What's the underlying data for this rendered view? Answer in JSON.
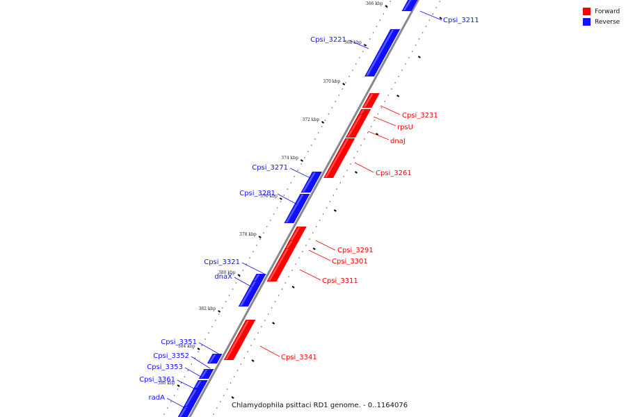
{
  "legend": [
    {
      "label": "Forward",
      "color": "#ff0000"
    },
    {
      "label": "Reverse",
      "color": "#1010ff"
    }
  ],
  "caption": "Chlamydophila psittaci RD1 genome. - 0..1164076",
  "kbp_ticks": [
    "366 kbp",
    "368 kbp",
    "370 kbp",
    "372 kbp",
    "374 kbp",
    "376 kbp",
    "378 kbp",
    "380 kbp",
    "382 kbp",
    "384 kbp",
    "386 kbp"
  ],
  "genes": [
    {
      "name": "Cpsi_3211",
      "strand": "reverse"
    },
    {
      "name": "Cpsi_3221",
      "strand": "reverse"
    },
    {
      "name": "Cpsi_3231",
      "strand": "forward"
    },
    {
      "name": "rpsU",
      "strand": "forward"
    },
    {
      "name": "dnaJ",
      "strand": "forward"
    },
    {
      "name": "Cpsi_3261",
      "strand": "forward"
    },
    {
      "name": "Cpsi_3271",
      "strand": "reverse"
    },
    {
      "name": "Cpsi_3281",
      "strand": "reverse"
    },
    {
      "name": "Cpsi_3291",
      "strand": "forward"
    },
    {
      "name": "Cpsi_3301",
      "strand": "forward"
    },
    {
      "name": "Cpsi_3311",
      "strand": "forward"
    },
    {
      "name": "Cpsi_3321",
      "strand": "reverse"
    },
    {
      "name": "dnaX",
      "strand": "reverse"
    },
    {
      "name": "Cpsi_3341",
      "strand": "forward"
    },
    {
      "name": "Cpsi_3351",
      "strand": "reverse"
    },
    {
      "name": "Cpsi_3352",
      "strand": "reverse"
    },
    {
      "name": "Cpsi_3353",
      "strand": "reverse"
    },
    {
      "name": "Cpsi_3361",
      "strand": "reverse"
    },
    {
      "name": "radA",
      "strand": "reverse"
    }
  ]
}
